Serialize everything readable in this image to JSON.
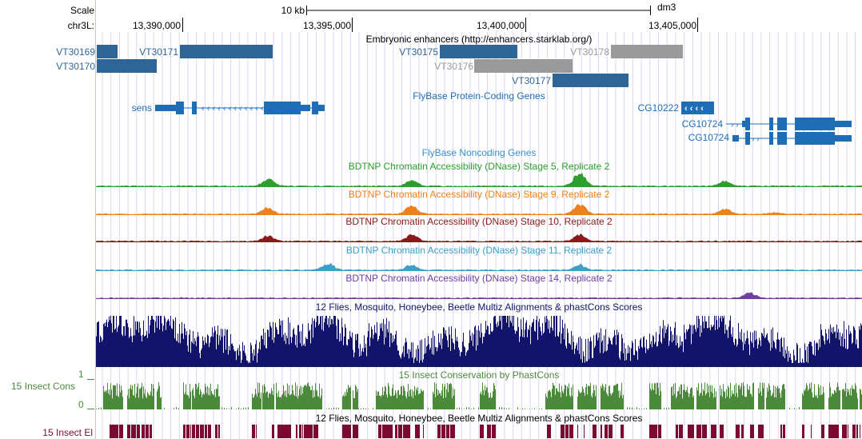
{
  "header": {
    "scale_label": "Scale",
    "chrom_label": "chr3L:",
    "scale_bar_text": "10 kb",
    "assembly": "dm3",
    "positions": [
      "13,390,000",
      "13,395,000",
      "13,400,000",
      "13,405,000"
    ]
  },
  "tracks": {
    "enhancers": {
      "title": "Embryonic enhancers (http://enhancers.starklab.org/)",
      "items": [
        {
          "name": "VT30169",
          "color": "#2f6596"
        },
        {
          "name": "VT30170",
          "color": "#2f6596"
        },
        {
          "name": "VT30171",
          "color": "#2f6596"
        },
        {
          "name": "VT30175",
          "color": "#2f6596"
        },
        {
          "name": "VT30176",
          "color": "#9a9a9a"
        },
        {
          "name": "VT30177",
          "color": "#2f6596"
        },
        {
          "name": "VT30178",
          "color": "#9a9a9a"
        }
      ]
    },
    "genes": {
      "title": "FlyBase Protein-Coding Genes",
      "color": "#1f6db5",
      "items": [
        {
          "name": "sens",
          "strand": "-"
        },
        {
          "name": "CG10222",
          "strand": "-"
        },
        {
          "name": "CG10724",
          "strand": "+"
        },
        {
          "name": "CG10724",
          "strand": "+"
        }
      ]
    },
    "noncoding": {
      "title": "FlyBase Noncoding Genes",
      "color": "#3a8fd0"
    },
    "dnase": [
      {
        "title": "BDTNP Chromatin Accessibility (DNase) Stage 5, Replicate 2",
        "color": "#2ca02c"
      },
      {
        "title": "BDTNP Chromatin Accessibility (DNase) Stage 9, Replicate 2",
        "color": "#f0801a"
      },
      {
        "title": "BDTNP Chromatin Accessibility (DNase) Stage 10, Replicate 2",
        "color": "#8b1a1a"
      },
      {
        "title": "BDTNP Chromatin Accessibility (DNase) Stage 11, Replicate 2",
        "color": "#3aa0c8"
      },
      {
        "title": "BDTNP Chromatin Accessibility (DNase) Stage 14, Replicate 2",
        "color": "#7040a0"
      }
    ],
    "multiz": {
      "title": "12 Flies, Mosquito, Honeybee, Beetle Multiz Alignments & phastCons Scores",
      "color": "#12146b"
    },
    "insect_cons": {
      "side_label": "15 Insect Cons",
      "title": "15 Insect Conservation by PhastCons",
      "axis_max": "1",
      "axis_min": "0",
      "color": "#4a8a3a"
    },
    "insect_el": {
      "side_label": "15 Insect El",
      "title": "12 Flies, Mosquito, Honeybee, Beetle Multiz Alignments & phastCons Scores",
      "color": "#7a0a30"
    }
  }
}
